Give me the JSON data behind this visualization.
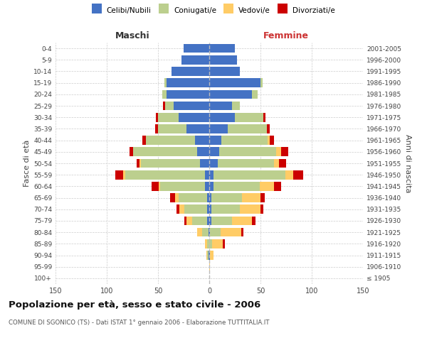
{
  "age_groups": [
    "100+",
    "95-99",
    "90-94",
    "85-89",
    "80-84",
    "75-79",
    "70-74",
    "65-69",
    "60-64",
    "55-59",
    "50-54",
    "45-49",
    "40-44",
    "35-39",
    "30-34",
    "25-29",
    "20-24",
    "15-19",
    "10-14",
    "5-9",
    "0-4"
  ],
  "birth_years": [
    "≤ 1905",
    "1906-1910",
    "1911-1915",
    "1916-1920",
    "1921-1925",
    "1926-1930",
    "1931-1935",
    "1936-1940",
    "1941-1945",
    "1946-1950",
    "1951-1955",
    "1956-1960",
    "1961-1965",
    "1966-1970",
    "1971-1975",
    "1976-1980",
    "1981-1985",
    "1986-1990",
    "1991-1995",
    "1996-2000",
    "2001-2005"
  ],
  "maschi_celibi": [
    0,
    0,
    1,
    0,
    1,
    2,
    2,
    2,
    4,
    4,
    9,
    12,
    14,
    22,
    30,
    35,
    42,
    42,
    37,
    27,
    25
  ],
  "maschi_coniugati": [
    0,
    0,
    1,
    2,
    6,
    15,
    22,
    28,
    44,
    78,
    58,
    62,
    48,
    28,
    20,
    8,
    4,
    2,
    0,
    0,
    0
  ],
  "maschi_vedovi": [
    0,
    0,
    1,
    2,
    5,
    5,
    5,
    3,
    1,
    2,
    1,
    0,
    0,
    0,
    0,
    0,
    0,
    0,
    0,
    0,
    0
  ],
  "maschi_divorziati": [
    0,
    0,
    0,
    0,
    0,
    2,
    3,
    5,
    7,
    8,
    3,
    4,
    3,
    3,
    2,
    2,
    0,
    0,
    0,
    0,
    0
  ],
  "femmine_nubili": [
    0,
    0,
    1,
    0,
    1,
    2,
    2,
    2,
    4,
    4,
    8,
    10,
    12,
    18,
    25,
    22,
    42,
    50,
    30,
    27,
    25
  ],
  "femmine_coniugate": [
    0,
    0,
    0,
    3,
    10,
    20,
    28,
    30,
    45,
    70,
    55,
    55,
    45,
    38,
    28,
    8,
    5,
    2,
    0,
    0,
    0
  ],
  "femmine_vedove": [
    0,
    1,
    3,
    10,
    20,
    20,
    20,
    18,
    14,
    8,
    5,
    5,
    2,
    0,
    0,
    0,
    0,
    0,
    0,
    0,
    0
  ],
  "femmine_divorziate": [
    0,
    0,
    0,
    2,
    2,
    3,
    3,
    4,
    7,
    10,
    7,
    7,
    4,
    3,
    2,
    0,
    0,
    0,
    0,
    0,
    0
  ],
  "colors": {
    "celibi_nubili": "#4472C4",
    "coniugati": "#BCCF8E",
    "vedovi": "#FFCC66",
    "divorziati": "#CC0000"
  },
  "title": "Popolazione per età, sesso e stato civile - 2006",
  "subtitle": "COMUNE DI SGONICO (TS) - Dati ISTAT 1° gennaio 2006 - Elaborazione TUTTITALIA.IT",
  "ylabel_left": "Fasce di età",
  "ylabel_right": "Anni di nascita",
  "xlabel_left": "Maschi",
  "xlabel_right": "Femmine"
}
